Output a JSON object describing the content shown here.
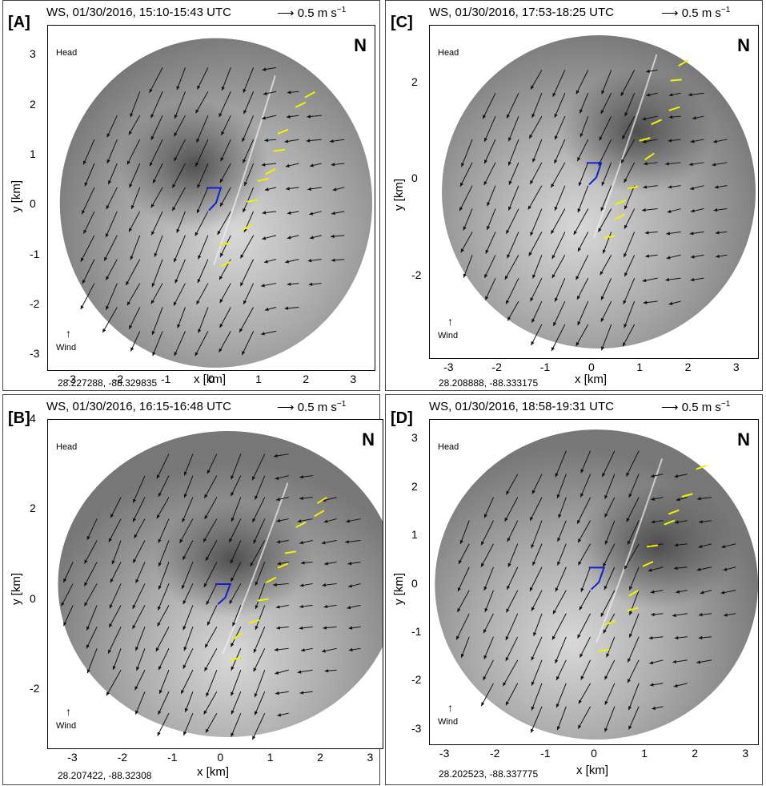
{
  "figure": {
    "scale_label": "0.5 m s",
    "scale_exp": "−1",
    "x_axis_label": "x [km]",
    "y_axis_label": "y [km]",
    "north_label": "N",
    "head_label": "Head",
    "wind_label": "Wind"
  },
  "panels": [
    {
      "label": "[A]",
      "title": "WS, 01/30/2016, 15:10-15:43 UTC",
      "coords": "28.227288, -88.329835",
      "x_ticks": [
        "-3",
        "-2",
        "-1",
        "0",
        "1",
        "2",
        "3"
      ],
      "y_ticks": [
        "3",
        "2",
        "1",
        "0",
        "-1",
        "-2",
        "-3"
      ],
      "head_dir": "south",
      "wind_dir": "north"
    },
    {
      "label": "[B]",
      "title": "WS, 01/30/2016, 16:15-16:48 UTC",
      "coords": "28.207422, -88.32308",
      "x_ticks": [
        "-3",
        "-2",
        "-1",
        "0",
        "1",
        "2",
        "3"
      ],
      "y_ticks": [
        "4",
        "2",
        "0",
        "-2"
      ],
      "head_dir": "south",
      "wind_dir": "north"
    },
    {
      "label": "[C]",
      "title": "WS, 01/30/2016, 17:53-18:25 UTC",
      "coords": "28.208888, -88.333175",
      "x_ticks": [
        "-3",
        "-2",
        "-1",
        "0",
        "1",
        "2",
        "3"
      ],
      "y_ticks": [
        "2",
        "0",
        "-2"
      ],
      "head_dir": "southwest",
      "wind_dir": "north"
    },
    {
      "label": "[D]",
      "title": "WS, 01/30/2016, 18:58-19:31 UTC",
      "coords": "28.202523, -88.337775",
      "x_ticks": [
        "-3",
        "-2",
        "-1",
        "0",
        "1",
        "2",
        "3"
      ],
      "y_ticks": [
        "3",
        "2",
        "1",
        "0",
        "-1",
        "-2",
        "-3"
      ],
      "head_dir": "east",
      "wind_dir": "north"
    }
  ],
  "colors": {
    "radar_dark": "#4a4a4a",
    "radar_light": "#d8d8d8",
    "vector": "#111111",
    "drifter": "#f2f200",
    "track": "#1020d0"
  }
}
